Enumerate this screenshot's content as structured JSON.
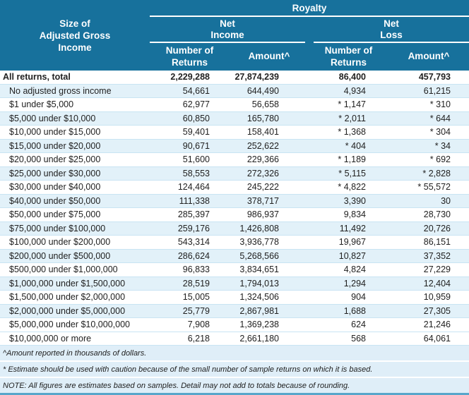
{
  "chart_data": {
    "type": "table",
    "title": "Royalty",
    "row_header": [
      "Size of",
      "Adjusted Gross",
      "Income"
    ],
    "groups": [
      {
        "line1": "Net",
        "line2": "Income"
      },
      {
        "line1": "Net",
        "line2": "Loss"
      }
    ],
    "columns": [
      {
        "line1": "Number of",
        "line2": "Returns"
      },
      {
        "line1": "Amount^",
        "line2": ""
      },
      {
        "line1": "Number of",
        "line2": "Returns"
      },
      {
        "line1": "Amount^",
        "line2": ""
      }
    ],
    "rows": [
      {
        "label": "All returns, total",
        "total": true,
        "cells": [
          "2,229,288",
          "27,874,239",
          "86,400",
          "457,793"
        ]
      },
      {
        "label": "No adjusted gross income",
        "total": false,
        "cells": [
          "54,661",
          "644,490",
          "4,934",
          "61,215"
        ]
      },
      {
        "label": "$1 under $5,000",
        "total": false,
        "cells": [
          "62,977",
          "56,658",
          "* 1,147",
          "* 310"
        ]
      },
      {
        "label": "$5,000 under $10,000",
        "total": false,
        "cells": [
          "60,850",
          "165,780",
          "* 2,011",
          "* 644"
        ]
      },
      {
        "label": "$10,000 under $15,000",
        "total": false,
        "cells": [
          "59,401",
          "158,401",
          "* 1,368",
          "* 304"
        ]
      },
      {
        "label": "$15,000 under $20,000",
        "total": false,
        "cells": [
          "90,671",
          "252,622",
          "* 404",
          "* 34"
        ]
      },
      {
        "label": "$20,000 under $25,000",
        "total": false,
        "cells": [
          "51,600",
          "229,366",
          "* 1,189",
          "* 692"
        ]
      },
      {
        "label": "$25,000 under $30,000",
        "total": false,
        "cells": [
          "58,553",
          "272,326",
          "* 5,115",
          "* 2,828"
        ]
      },
      {
        "label": "$30,000 under $40,000",
        "total": false,
        "cells": [
          "124,464",
          "245,222",
          "* 4,822",
          "* 55,572"
        ]
      },
      {
        "label": "$40,000 under $50,000",
        "total": false,
        "cells": [
          "111,338",
          "378,717",
          "3,390",
          "30"
        ]
      },
      {
        "label": "$50,000 under $75,000",
        "total": false,
        "cells": [
          "285,397",
          "986,937",
          "9,834",
          "28,730"
        ]
      },
      {
        "label": "$75,000 under $100,000",
        "total": false,
        "cells": [
          "259,176",
          "1,426,808",
          "11,492",
          "20,726"
        ]
      },
      {
        "label": "$100,000 under $200,000",
        "total": false,
        "cells": [
          "543,314",
          "3,936,778",
          "19,967",
          "86,151"
        ]
      },
      {
        "label": "$200,000 under $500,000",
        "total": false,
        "cells": [
          "286,624",
          "5,268,566",
          "10,827",
          "37,352"
        ]
      },
      {
        "label": "$500,000 under $1,000,000",
        "total": false,
        "cells": [
          "96,833",
          "3,834,651",
          "4,824",
          "27,229"
        ]
      },
      {
        "label": "$1,000,000 under $1,500,000",
        "total": false,
        "cells": [
          "28,519",
          "1,794,013",
          "1,294",
          "12,404"
        ]
      },
      {
        "label": "$1,500,000 under $2,000,000",
        "total": false,
        "cells": [
          "15,005",
          "1,324,506",
          "904",
          "10,959"
        ]
      },
      {
        "label": "$2,000,000 under $5,000,000",
        "total": false,
        "cells": [
          "25,779",
          "2,867,981",
          "1,688",
          "27,305"
        ]
      },
      {
        "label": "$5,000,000 under $10,000,000",
        "total": false,
        "cells": [
          "7,908",
          "1,369,238",
          "624",
          "21,246"
        ]
      },
      {
        "label": "$10,000,000 or more",
        "total": false,
        "cells": [
          "6,218",
          "2,661,180",
          "568",
          "64,061"
        ]
      }
    ],
    "footnotes": [
      "^Amount reported in thousands of dollars.",
      "* Estimate should be used with caution because of the small number of sample returns on which it is based.",
      "NOTE:  All figures are estimates based on samples. Detail may not add to totals because of rounding."
    ]
  },
  "colors": {
    "header_bg": "#17719C",
    "row_tint": "#E2F1F9",
    "separator": "#C9E4F3",
    "footnote_bg": "#DFEEF8",
    "bottom_border": "#58A6CB",
    "header_text": "#FFFFFF",
    "body_text": "#212121"
  }
}
